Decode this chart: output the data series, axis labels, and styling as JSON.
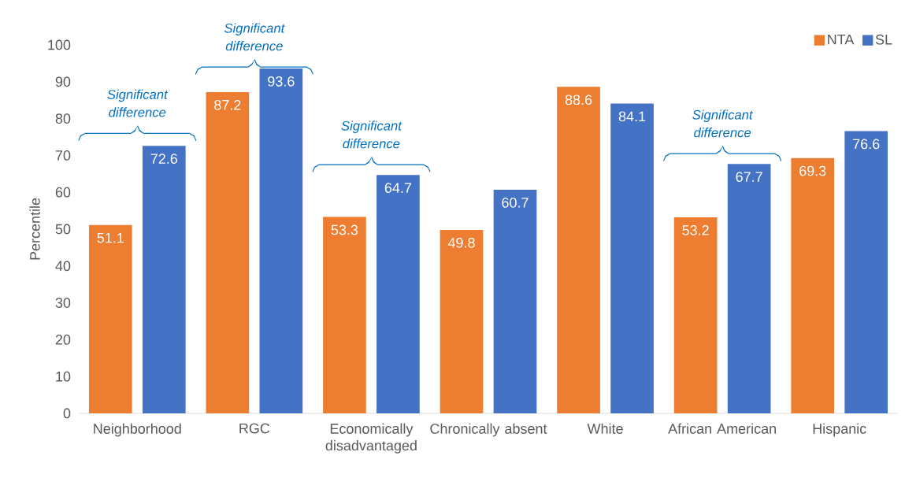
{
  "chart_data": {
    "type": "bar",
    "ylabel": "Percentile",
    "categories": [
      "Neighborhood",
      "RGC",
      "Economically disadvantaged",
      "Chronically absent",
      "White",
      "African American",
      "Hispanic"
    ],
    "series": [
      {
        "name": "NTA",
        "color": "#ed7d31",
        "values": [
          51.1,
          87.2,
          53.3,
          49.8,
          88.6,
          53.2,
          69.3
        ]
      },
      {
        "name": "SL",
        "color": "#4472c4",
        "values": [
          72.6,
          93.6,
          64.7,
          60.7,
          84.1,
          67.7,
          76.6
        ]
      }
    ],
    "ylim": [
      0,
      100
    ],
    "yticks": [
      0,
      10,
      20,
      30,
      40,
      50,
      60,
      70,
      80,
      90,
      100
    ],
    "data_labels": true,
    "legend": "top right",
    "grid": false,
    "annotations": [
      "Significant difference",
      "Significant difference",
      "Significant difference",
      "Significant difference"
    ]
  }
}
